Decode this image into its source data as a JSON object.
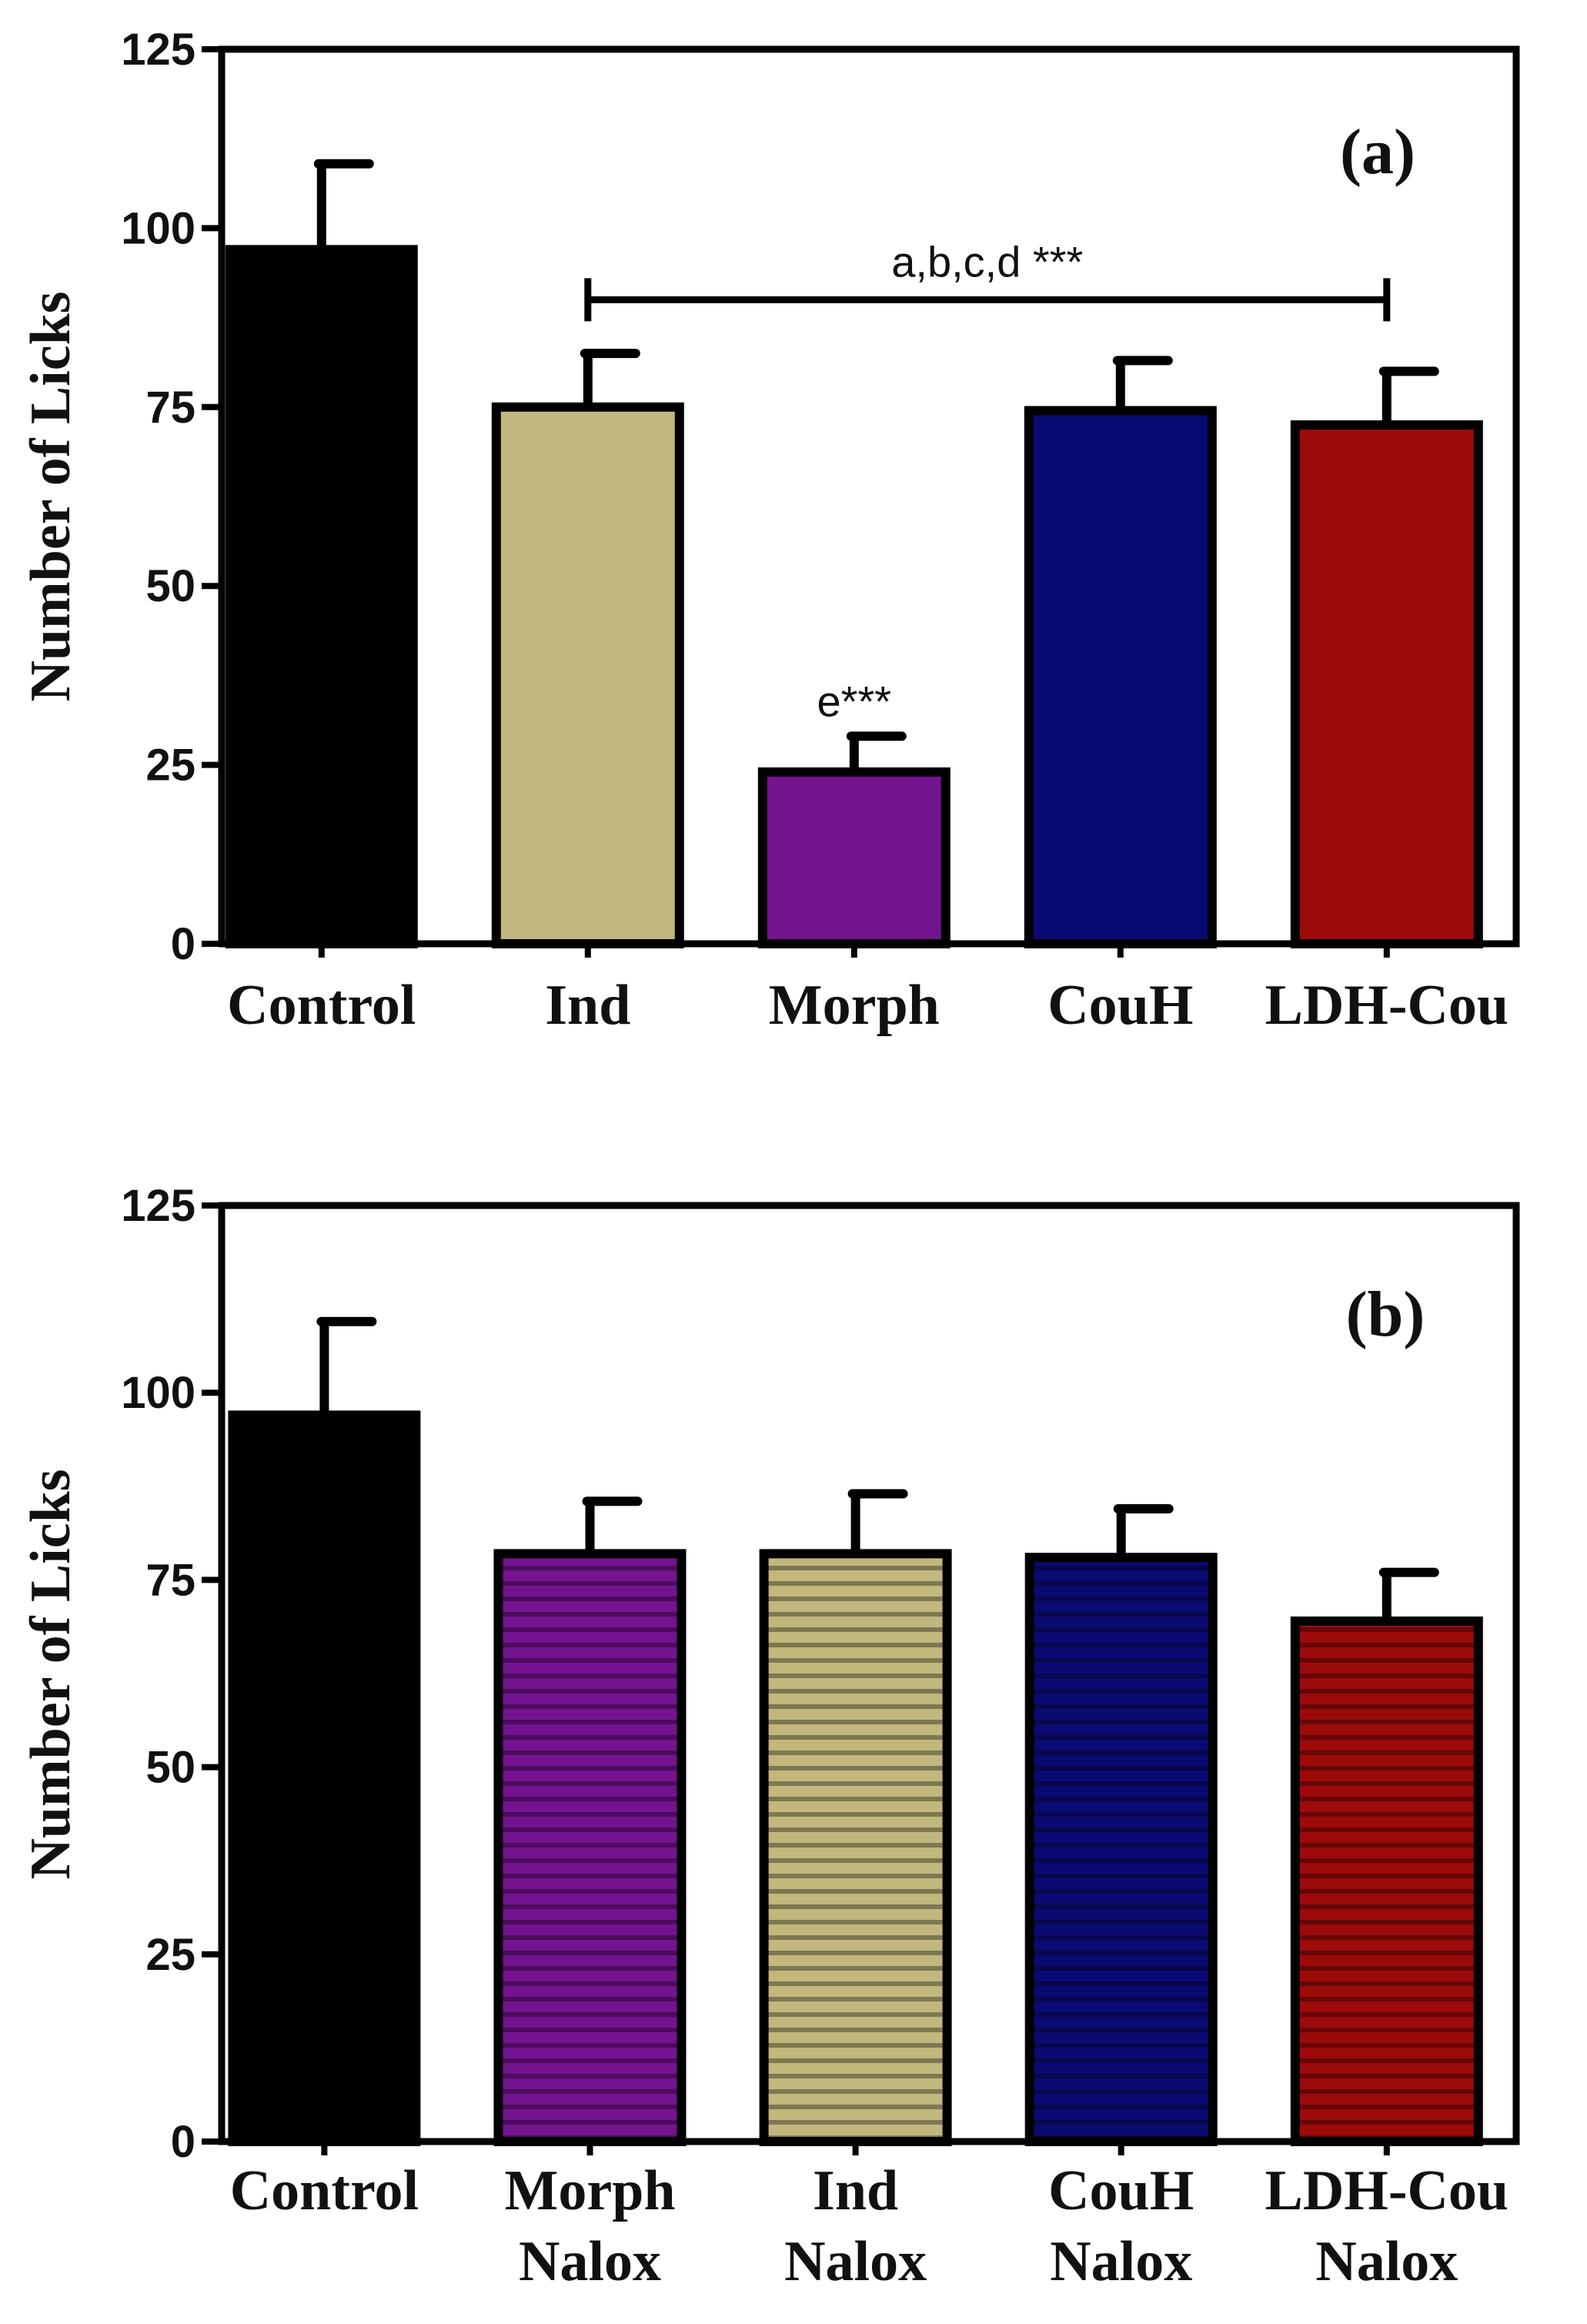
{
  "chart_data": [
    {
      "type": "bar",
      "panel_label": "(a)",
      "ylabel": "Number of Licks",
      "xlabel": "",
      "ylim": [
        0,
        125
      ],
      "yticks": [
        "0",
        "25",
        "50",
        "75",
        "100",
        "125"
      ],
      "categories": [
        {
          "lines": [
            "Control"
          ]
        },
        {
          "lines": [
            "Ind"
          ]
        },
        {
          "lines": [
            "Morph"
          ]
        },
        {
          "lines": [
            "CouH"
          ]
        },
        {
          "lines": [
            "LDH-Cou"
          ]
        }
      ],
      "values": [
        97,
        75,
        24,
        74.5,
        72.5
      ],
      "errors": [
        12,
        7.5,
        5,
        7,
        7.5
      ],
      "colors": [
        "#000000",
        "#c2b77d",
        "#74138f",
        "#0a0a73",
        "#9c0a0a"
      ],
      "striped": [
        false,
        false,
        false,
        false,
        false
      ],
      "annotations": {
        "bracket": {
          "from_index": 1,
          "to_index": 4,
          "y_value": 90,
          "text": "a,b,c,d ***"
        },
        "bar_labels": [
          {
            "index": 2,
            "text": "e***"
          }
        ]
      }
    },
    {
      "type": "bar",
      "panel_label": "(b)",
      "ylabel": "Number of  Licks",
      "xlabel": "",
      "ylim": [
        0,
        125
      ],
      "yticks": [
        "0",
        "25",
        "50",
        "75",
        "100",
        "125"
      ],
      "categories": [
        {
          "lines": [
            "Control"
          ]
        },
        {
          "lines": [
            "Morph",
            "Nalox"
          ]
        },
        {
          "lines": [
            "Ind",
            "Nalox"
          ]
        },
        {
          "lines": [
            "CouH",
            "Nalox"
          ]
        },
        {
          "lines": [
            "LDH-Cou",
            "Nalox"
          ]
        }
      ],
      "values": [
        97,
        78.5,
        78.5,
        78,
        69.5
      ],
      "errors": [
        12.5,
        7,
        8,
        6.5,
        6.5
      ],
      "colors": [
        "#000000",
        "#74138f",
        "#c2b77d",
        "#0a0a73",
        "#9c0a0a"
      ],
      "striped": [
        false,
        true,
        true,
        true,
        true
      ],
      "annotations": {
        "bracket": null,
        "bar_labels": []
      }
    }
  ]
}
